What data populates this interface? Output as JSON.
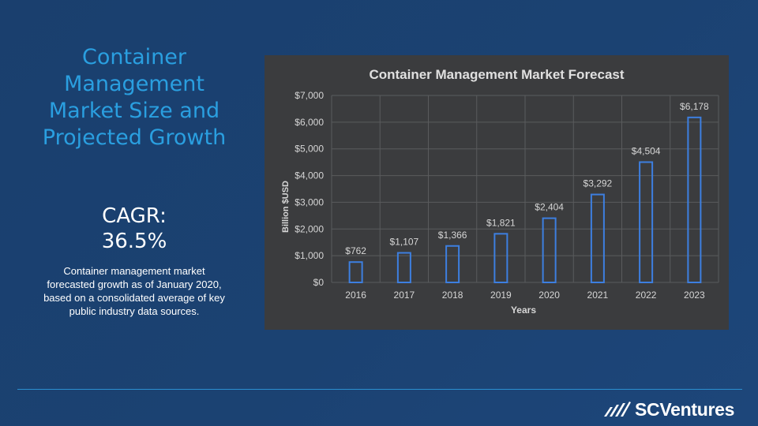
{
  "slide": {
    "title": "Container Management Market Size and Projected Growth",
    "cagr_label": "CAGR:",
    "cagr_value": "36.5%",
    "description": "Container management market forecasted growth as of January 2020, based on a consolidated average of key public industry data sources."
  },
  "brand": {
    "logo_icon": "scventures-logo-icon",
    "name": "SCVentures"
  },
  "chart_data": {
    "type": "bar",
    "title": "Container Management Market Forecast",
    "xlabel": "Years",
    "ylabel": "Billion $USD",
    "categories": [
      "2016",
      "2017",
      "2018",
      "2019",
      "2020",
      "2021",
      "2022",
      "2023"
    ],
    "values": [
      762,
      1107,
      1366,
      1821,
      2404,
      3292,
      4504,
      6178
    ],
    "data_labels": [
      "$762",
      "$1,107",
      "$1,366",
      "$1,821",
      "$2,404",
      "$3,292",
      "$4,504",
      "$6,178"
    ],
    "ylim": [
      0,
      7000
    ],
    "yticks": [
      0,
      1000,
      2000,
      3000,
      4000,
      5000,
      6000,
      7000
    ],
    "ytick_labels": [
      "$0",
      "$1,000",
      "$2,000",
      "$3,000",
      "$4,000",
      "$5,000",
      "$6,000",
      "$7,000"
    ],
    "grid": true,
    "colors": {
      "bar_outline": "#3d7fe0",
      "panel_bg": "#3b3c3e",
      "text": "#d6d6d6",
      "grid": "#5a5b5d"
    }
  }
}
